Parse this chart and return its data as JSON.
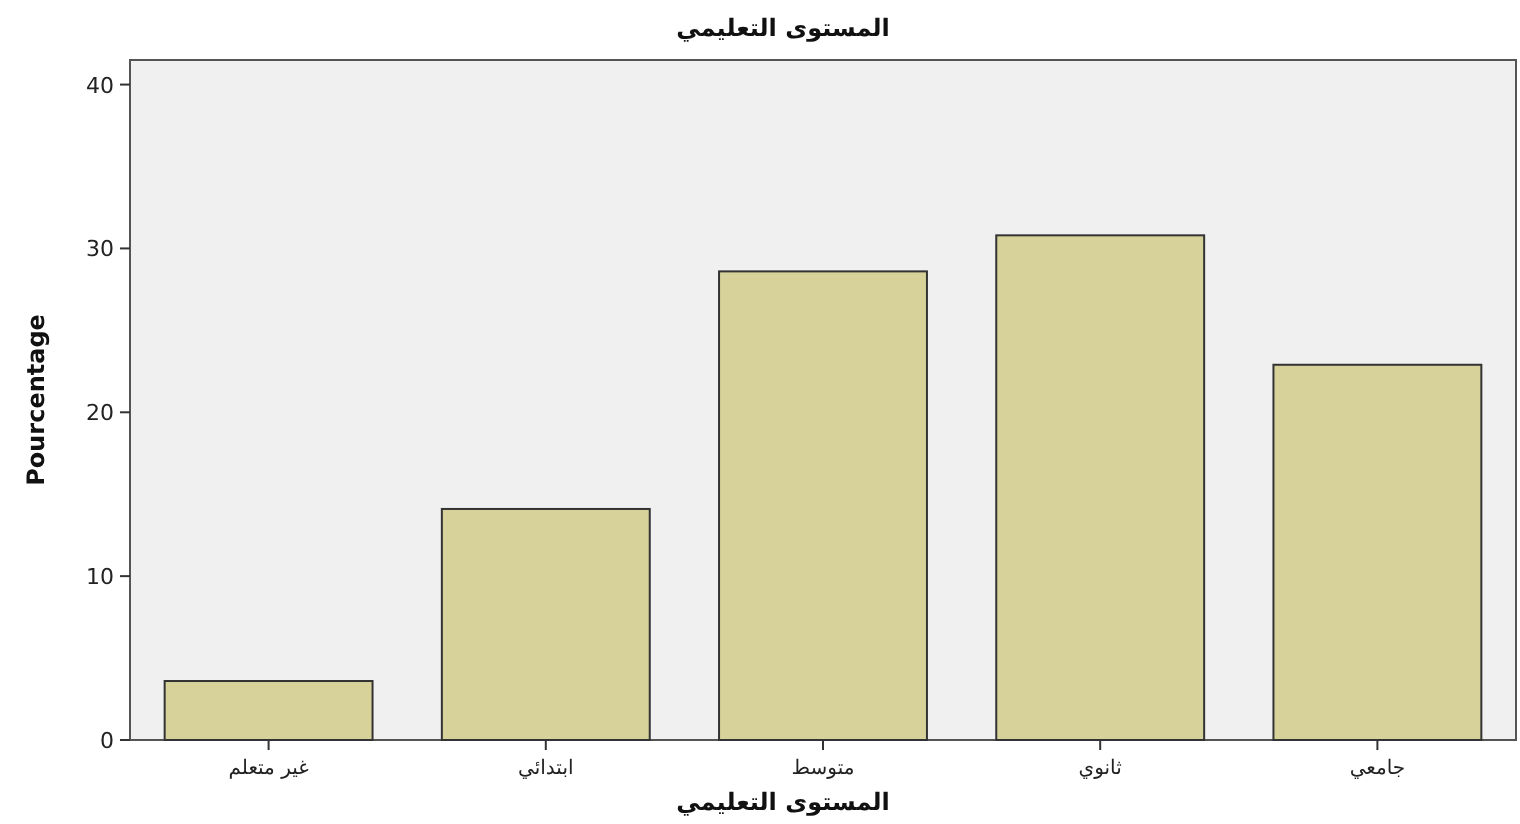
{
  "chart_data": {
    "type": "bar",
    "title": "المستوى التعليمي",
    "xlabel": "المستوى التعليمي",
    "ylabel": "Pourcentage",
    "categories": [
      "غير متعلم",
      "ابتدائي",
      "متوسط",
      "ثانوي",
      "جامعي"
    ],
    "values": [
      3.6,
      14.1,
      28.6,
      30.8,
      22.9
    ],
    "color": "#d6d29a",
    "ylim": [
      0,
      41.5
    ],
    "yticks": [
      0,
      10,
      20,
      30,
      40
    ],
    "grid": false
  }
}
